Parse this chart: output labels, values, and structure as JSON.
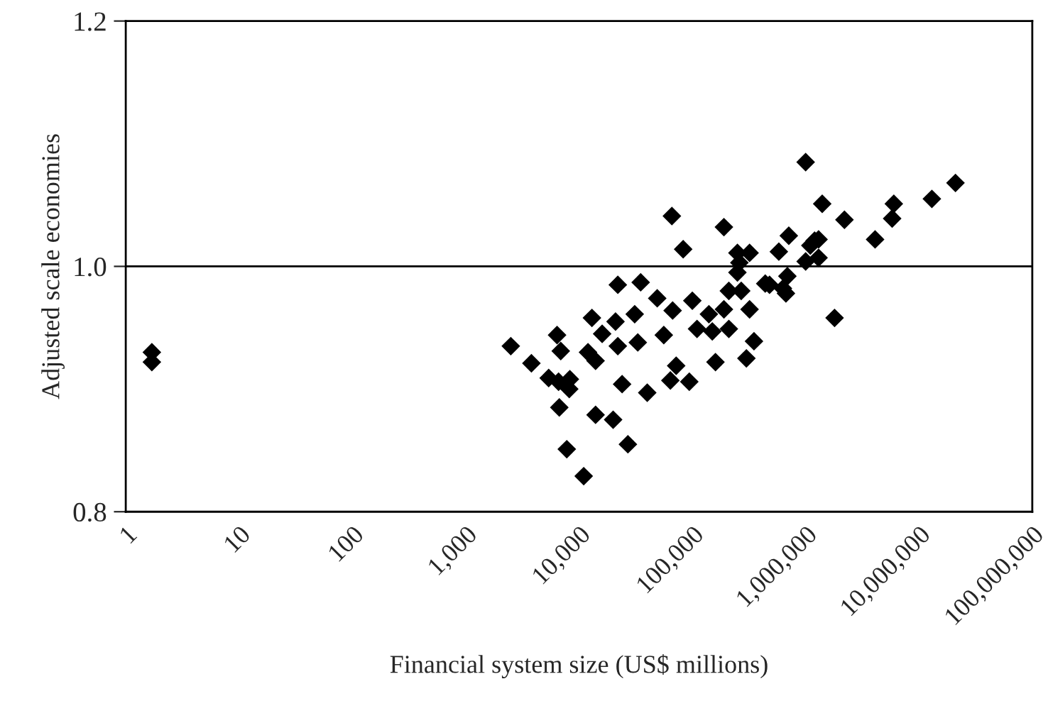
{
  "chart_data": {
    "type": "scatter",
    "xlabel": "Financial system size (US$ millions)",
    "ylabel": "Adjusted scale economies",
    "log": "x",
    "marker": "diamond",
    "grid": false,
    "xlim": [
      1,
      100000000
    ],
    "xticks": [
      {
        "value": 1,
        "label": "1"
      },
      {
        "value": 10,
        "label": "10"
      },
      {
        "value": 100,
        "label": "100"
      },
      {
        "value": 1000,
        "label": "1,000"
      },
      {
        "value": 10000,
        "label": "10,000"
      },
      {
        "value": 100000,
        "label": "100,000"
      },
      {
        "value": 1000000,
        "label": "1,000,000"
      },
      {
        "value": 10000000,
        "label": "10,000,000"
      },
      {
        "value": 100000000,
        "label": "100,000,000"
      }
    ],
    "ylim": [
      0.8,
      1.2
    ],
    "yticks": [
      {
        "value": 0.8,
        "label": "0.8"
      },
      {
        "value": 1.0,
        "label": "1.0"
      },
      {
        "value": 1.2,
        "label": "1.2"
      }
    ],
    "ref_lines": [
      {
        "axis": "y",
        "value": 1.0,
        "label": null,
        "color": "#000000"
      }
    ],
    "series": [
      {
        "color": "#000000",
        "x": [
          1.7,
          1.7,
          2500,
          3800,
          5400,
          6400,
          6900,
          6600,
          8300,
          8200,
          6700,
          7800,
          11000,
          12000,
          14000,
          13000,
          14000,
          16000,
          20000,
          21000,
          22000,
          22000,
          24000,
          27000,
          31000,
          33000,
          35000,
          40000,
          49000,
          56000,
          64000,
          66000,
          67000,
          72000,
          83000,
          94000,
          100000,
          110000,
          140000,
          150000,
          160000,
          190000,
          190000,
          210000,
          210000,
          250000,
          320000,
          260000,
          250000,
          270000,
          300000,
          320000,
          350000,
          440000,
          480000,
          580000,
          630000,
          670000,
          690000,
          710000,
          1000000,
          1000000,
          1100000,
          1200000,
          1300000,
          1300000,
          1400000,
          1800000,
          2200000,
          4100000,
          5800000,
          6000000,
          13000000,
          21000000
        ],
        "values": [
          0.93,
          0.922,
          0.935,
          0.921,
          0.909,
          0.944,
          0.931,
          0.906,
          0.908,
          0.9,
          0.885,
          0.851,
          0.829,
          0.93,
          0.923,
          0.958,
          0.879,
          0.945,
          0.875,
          0.955,
          0.985,
          0.935,
          0.904,
          0.855,
          0.961,
          0.938,
          0.987,
          0.897,
          0.974,
          0.944,
          0.907,
          1.041,
          0.964,
          0.919,
          1.014,
          0.906,
          0.972,
          0.949,
          0.961,
          0.947,
          0.922,
          1.032,
          0.965,
          0.98,
          0.949,
          1.011,
          1.011,
          1.003,
          0.995,
          0.98,
          0.925,
          0.965,
          0.939,
          0.986,
          0.985,
          1.012,
          0.982,
          0.978,
          0.992,
          1.025,
          1.004,
          1.085,
          1.017,
          1.021,
          1.022,
          1.007,
          1.051,
          0.958,
          1.038,
          1.022,
          1.039,
          1.051,
          1.055,
          1.068
        ]
      }
    ]
  }
}
